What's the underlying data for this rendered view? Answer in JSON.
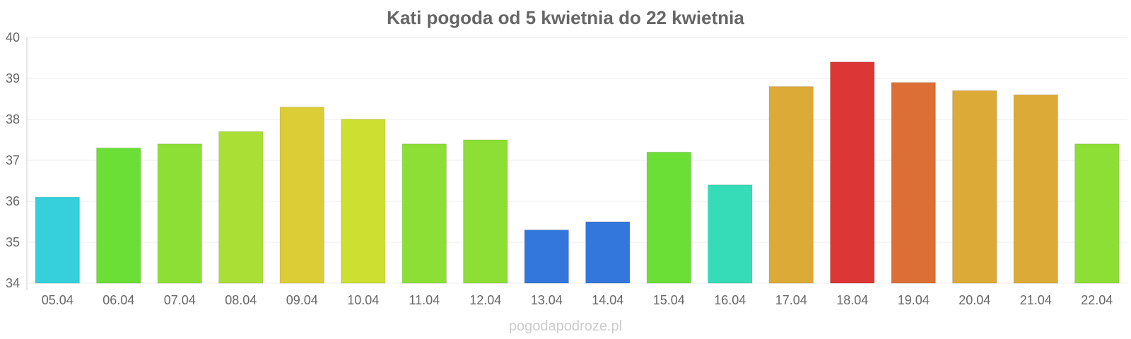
{
  "chart_data": {
    "type": "bar",
    "title": "Kati pogoda od 5 kwietnia do 22 kwietnia",
    "xlabel": "",
    "ylabel": "",
    "ylim": [
      34,
      40
    ],
    "yticks": [
      34,
      35,
      36,
      37,
      38,
      39,
      40
    ],
    "grid": true,
    "legend": "none",
    "categories": [
      "05.04",
      "06.04",
      "07.04",
      "08.04",
      "09.04",
      "10.04",
      "11.04",
      "12.04",
      "13.04",
      "14.04",
      "15.04",
      "16.04",
      "17.04",
      "18.04",
      "19.04",
      "20.04",
      "21.04",
      "22.04"
    ],
    "values": [
      36.1,
      37.3,
      37.4,
      37.7,
      38.3,
      38.0,
      37.4,
      37.5,
      35.3,
      35.5,
      37.2,
      36.4,
      38.8,
      39.4,
      38.9,
      38.7,
      38.6,
      37.4
    ],
    "colors": [
      "#36cfdc",
      "#6bdf36",
      "#8ddf36",
      "#aadf36",
      "#dccc36",
      "#cddf30",
      "#8ddf36",
      "#8ddf36",
      "#3477dc",
      "#3477dc",
      "#6bdf36",
      "#36dcb8",
      "#dcaa36",
      "#dc3636",
      "#dc6f36",
      "#dcaa36",
      "#dcaa36",
      "#8ddf36"
    ]
  },
  "footer": {
    "watermark": "pogodapodroze.pl"
  }
}
